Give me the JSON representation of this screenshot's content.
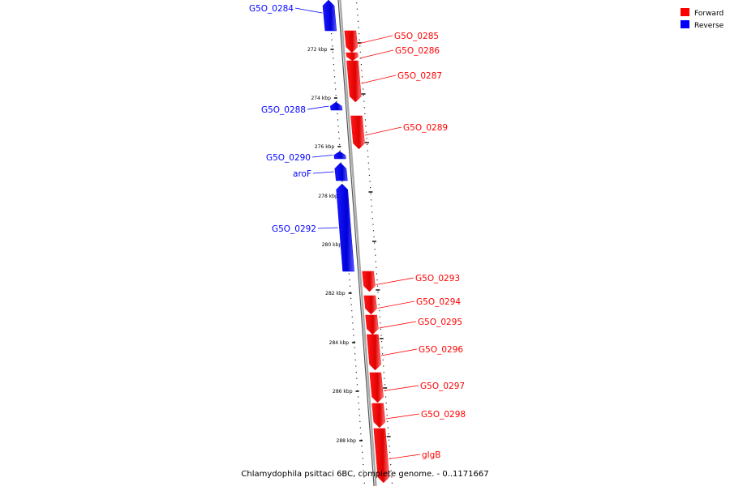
{
  "caption": "Chlamydophila psittaci 6BC, complete genome. - 0..1171667",
  "colors": {
    "forward": "#ff0000",
    "reverse": "#0000ff",
    "backbone": "#999999"
  },
  "legend": [
    {
      "label": "Forward",
      "color": "#ff0000"
    },
    {
      "label": "Reverse",
      "color": "#0000ff"
    }
  ],
  "ticks": [
    "272 kbp",
    "274 kbp",
    "276 kbp",
    "278 kbp",
    "280 kbp",
    "282 kbp",
    "284 kbp",
    "286 kbp",
    "288 kbp"
  ],
  "genes": [
    {
      "name": "G5O_0284",
      "strand": "reverse"
    },
    {
      "name": "G5O_0285",
      "strand": "forward"
    },
    {
      "name": "G5O_0286",
      "strand": "forward"
    },
    {
      "name": "G5O_0287",
      "strand": "forward"
    },
    {
      "name": "G5O_0288",
      "strand": "reverse"
    },
    {
      "name": "G5O_0289",
      "strand": "forward"
    },
    {
      "name": "G5O_0290",
      "strand": "reverse"
    },
    {
      "name": "aroF",
      "strand": "reverse"
    },
    {
      "name": "G5O_0292",
      "strand": "reverse"
    },
    {
      "name": "G5O_0293",
      "strand": "forward"
    },
    {
      "name": "G5O_0294",
      "strand": "forward"
    },
    {
      "name": "G5O_0295",
      "strand": "forward"
    },
    {
      "name": "G5O_0296",
      "strand": "forward"
    },
    {
      "name": "G5O_0297",
      "strand": "forward"
    },
    {
      "name": "G5O_0298",
      "strand": "forward"
    },
    {
      "name": "glgB",
      "strand": "forward"
    }
  ]
}
